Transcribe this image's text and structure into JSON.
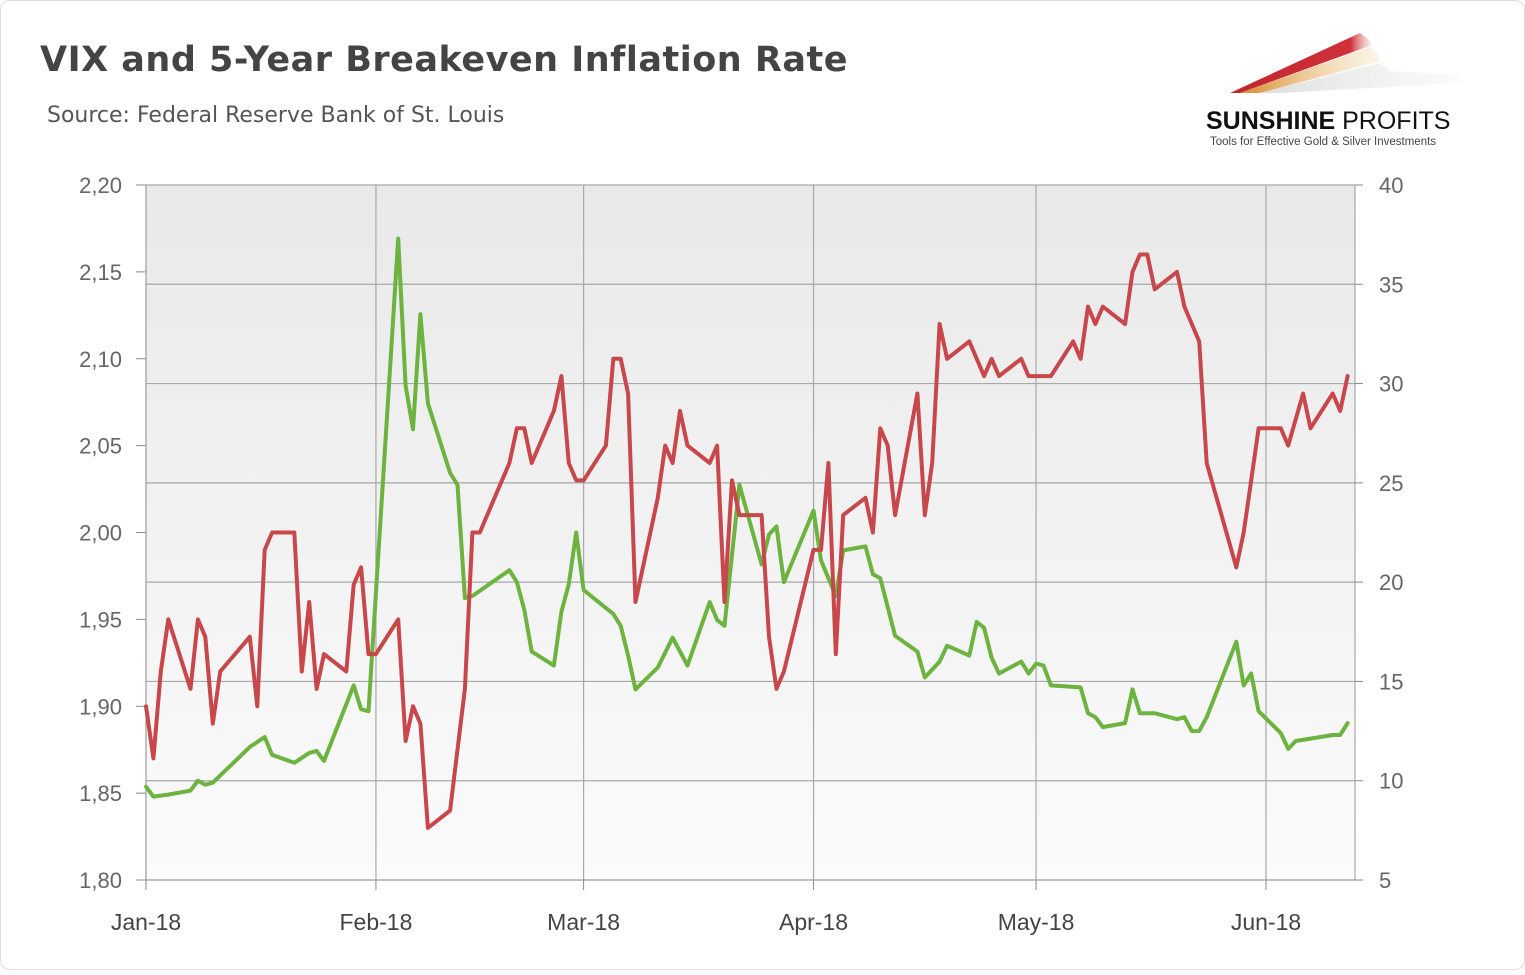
{
  "header": {
    "title": "VIX and 5-Year Breakeven Inflation Rate",
    "source": "Source: Federal Reserve Bank of St. Louis"
  },
  "logo": {
    "name_bold": "SUNSHINE",
    "name_light": " PROFITS",
    "tagline": "Tools for Effective Gold & Silver Investments"
  },
  "chart_data": {
    "type": "line",
    "title": "VIX and 5-Year Breakeven Inflation Rate",
    "x_unit": "days since 2018-01-01",
    "xlim": [
      0,
      163
    ],
    "x_ticks": [
      {
        "day": 0,
        "label": "Jan-18"
      },
      {
        "day": 31,
        "label": "Feb-18"
      },
      {
        "day": 59,
        "label": "Mar-18"
      },
      {
        "day": 90,
        "label": "Apr-18"
      },
      {
        "day": 120,
        "label": "May-18"
      },
      {
        "day": 151,
        "label": "Jun-18"
      }
    ],
    "y_left": {
      "lim": [
        1.8,
        2.2
      ],
      "ticks": [
        "1,80",
        "1,85",
        "1,90",
        "1,95",
        "2,00",
        "2,05",
        "2,10",
        "2,15",
        "2,20"
      ],
      "values": [
        1.8,
        1.85,
        1.9,
        1.95,
        2.0,
        2.05,
        2.1,
        2.15,
        2.2
      ]
    },
    "y_right": {
      "lim": [
        5,
        40
      ],
      "ticks": [
        "5",
        "10",
        "15",
        "20",
        "25",
        "30",
        "35",
        "40"
      ],
      "values": [
        5,
        10,
        15,
        20,
        25,
        30,
        35,
        40
      ]
    },
    "grid": true,
    "series": [
      {
        "name": "5-Year Breakeven Inflation Rate",
        "axis": "left",
        "color": "#c8474b",
        "points": [
          [
            0,
            1.9
          ],
          [
            1,
            1.87
          ],
          [
            2,
            1.92
          ],
          [
            3,
            1.95
          ],
          [
            6,
            1.91
          ],
          [
            7,
            1.95
          ],
          [
            8,
            1.94
          ],
          [
            9,
            1.89
          ],
          [
            10,
            1.92
          ],
          [
            14,
            1.94
          ],
          [
            15,
            1.9
          ],
          [
            16,
            1.99
          ],
          [
            17,
            2.0
          ],
          [
            20,
            2.0
          ],
          [
            21,
            1.92
          ],
          [
            22,
            1.96
          ],
          [
            23,
            1.91
          ],
          [
            24,
            1.93
          ],
          [
            27,
            1.92
          ],
          [
            28,
            1.97
          ],
          [
            29,
            1.98
          ],
          [
            30,
            1.93
          ],
          [
            31,
            1.93
          ],
          [
            34,
            1.95
          ],
          [
            35,
            1.88
          ],
          [
            36,
            1.9
          ],
          [
            37,
            1.89
          ],
          [
            38,
            1.83
          ],
          [
            41,
            1.84
          ],
          [
            43,
            1.91
          ],
          [
            44,
            2.0
          ],
          [
            45,
            2.0
          ],
          [
            49,
            2.04
          ],
          [
            50,
            2.06
          ],
          [
            51,
            2.06
          ],
          [
            52,
            2.04
          ],
          [
            55,
            2.07
          ],
          [
            56,
            2.09
          ],
          [
            57,
            2.04
          ],
          [
            58,
            2.03
          ],
          [
            59,
            2.03
          ],
          [
            62,
            2.05
          ],
          [
            63,
            2.1
          ],
          [
            64,
            2.1
          ],
          [
            65,
            2.08
          ],
          [
            66,
            1.96
          ],
          [
            69,
            2.02
          ],
          [
            70,
            2.05
          ],
          [
            71,
            2.04
          ],
          [
            72,
            2.07
          ],
          [
            73,
            2.05
          ],
          [
            76,
            2.04
          ],
          [
            77,
            2.05
          ],
          [
            78,
            1.96
          ],
          [
            79,
            2.03
          ],
          [
            80,
            2.01
          ],
          [
            83,
            2.01
          ],
          [
            84,
            1.94
          ],
          [
            85,
            1.91
          ],
          [
            86,
            1.92
          ],
          [
            90,
            1.99
          ],
          [
            91,
            1.99
          ],
          [
            92,
            2.04
          ],
          [
            93,
            1.93
          ],
          [
            94,
            2.01
          ],
          [
            97,
            2.02
          ],
          [
            98,
            2.0
          ],
          [
            99,
            2.06
          ],
          [
            100,
            2.05
          ],
          [
            101,
            2.01
          ],
          [
            104,
            2.08
          ],
          [
            105,
            2.01
          ],
          [
            106,
            2.04
          ],
          [
            107,
            2.12
          ],
          [
            108,
            2.1
          ],
          [
            111,
            2.11
          ],
          [
            113,
            2.09
          ],
          [
            114,
            2.1
          ],
          [
            115,
            2.09
          ],
          [
            118,
            2.1
          ],
          [
            119,
            2.09
          ],
          [
            122,
            2.09
          ],
          [
            125,
            2.11
          ],
          [
            126,
            2.1
          ],
          [
            127,
            2.13
          ],
          [
            128,
            2.12
          ],
          [
            129,
            2.13
          ],
          [
            132,
            2.12
          ],
          [
            133,
            2.15
          ],
          [
            134,
            2.16
          ],
          [
            135,
            2.16
          ],
          [
            136,
            2.14
          ],
          [
            139,
            2.15
          ],
          [
            140,
            2.13
          ],
          [
            142,
            2.11
          ],
          [
            143,
            2.04
          ],
          [
            147,
            1.98
          ],
          [
            148,
            2.0
          ],
          [
            149,
            2.03
          ],
          [
            150,
            2.06
          ],
          [
            153,
            2.06
          ],
          [
            154,
            2.05
          ],
          [
            156,
            2.08
          ],
          [
            157,
            2.06
          ],
          [
            160,
            2.08
          ],
          [
            161,
            2.07
          ],
          [
            162,
            2.09
          ]
        ]
      },
      {
        "name": "VIX",
        "axis": "right",
        "color": "#6cb33f",
        "points": [
          [
            0,
            9.7
          ],
          [
            1,
            9.2
          ],
          [
            3,
            9.3
          ],
          [
            6,
            9.5
          ],
          [
            7,
            10.0
          ],
          [
            8,
            9.8
          ],
          [
            9,
            9.9
          ],
          [
            14,
            11.7
          ],
          [
            16,
            12.2
          ],
          [
            17,
            11.3
          ],
          [
            20,
            10.9
          ],
          [
            22,
            11.4
          ],
          [
            23,
            11.5
          ],
          [
            24,
            11.0
          ],
          [
            28,
            14.8
          ],
          [
            29,
            13.6
          ],
          [
            30,
            13.5
          ],
          [
            34,
            37.3
          ],
          [
            35,
            29.9
          ],
          [
            36,
            27.7
          ],
          [
            37,
            33.5
          ],
          [
            38,
            29.0
          ],
          [
            41,
            25.5
          ],
          [
            42,
            24.9
          ],
          [
            43,
            19.2
          ],
          [
            44,
            19.3
          ],
          [
            49,
            20.6
          ],
          [
            50,
            20.0
          ],
          [
            51,
            18.6
          ],
          [
            52,
            16.5
          ],
          [
            55,
            15.8
          ],
          [
            56,
            18.5
          ],
          [
            57,
            19.9
          ],
          [
            58,
            22.5
          ],
          [
            59,
            19.6
          ],
          [
            63,
            18.4
          ],
          [
            64,
            17.8
          ],
          [
            65,
            16.3
          ],
          [
            66,
            14.6
          ],
          [
            69,
            15.7
          ],
          [
            71,
            17.2
          ],
          [
            73,
            15.8
          ],
          [
            76,
            19.0
          ],
          [
            77,
            18.1
          ],
          [
            78,
            17.8
          ],
          [
            80,
            24.9
          ],
          [
            83,
            20.9
          ],
          [
            84,
            22.4
          ],
          [
            85,
            22.8
          ],
          [
            86,
            20.0
          ],
          [
            90,
            23.6
          ],
          [
            91,
            21.1
          ],
          [
            93,
            19.3
          ],
          [
            94,
            21.6
          ],
          [
            97,
            21.8
          ],
          [
            98,
            20.4
          ],
          [
            99,
            20.2
          ],
          [
            101,
            17.3
          ],
          [
            104,
            16.5
          ],
          [
            105,
            15.2
          ],
          [
            107,
            16.0
          ],
          [
            108,
            16.8
          ],
          [
            111,
            16.3
          ],
          [
            112,
            18.0
          ],
          [
            113,
            17.7
          ],
          [
            114,
            16.2
          ],
          [
            115,
            15.4
          ],
          [
            118,
            16.0
          ],
          [
            119,
            15.4
          ],
          [
            120,
            15.9
          ],
          [
            121,
            15.8
          ],
          [
            122,
            14.8
          ],
          [
            126,
            14.7
          ],
          [
            127,
            13.4
          ],
          [
            128,
            13.2
          ],
          [
            129,
            12.7
          ],
          [
            132,
            12.9
          ],
          [
            133,
            14.6
          ],
          [
            134,
            13.4
          ],
          [
            136,
            13.4
          ],
          [
            139,
            13.1
          ],
          [
            140,
            13.2
          ],
          [
            141,
            12.5
          ],
          [
            142,
            12.5
          ],
          [
            143,
            13.2
          ],
          [
            147,
            17.0
          ],
          [
            148,
            14.8
          ],
          [
            149,
            15.4
          ],
          [
            150,
            13.5
          ],
          [
            153,
            12.4
          ],
          [
            154,
            11.6
          ],
          [
            155,
            12.0
          ],
          [
            160,
            12.3
          ],
          [
            161,
            12.3
          ],
          [
            162,
            12.9
          ]
        ]
      }
    ]
  }
}
